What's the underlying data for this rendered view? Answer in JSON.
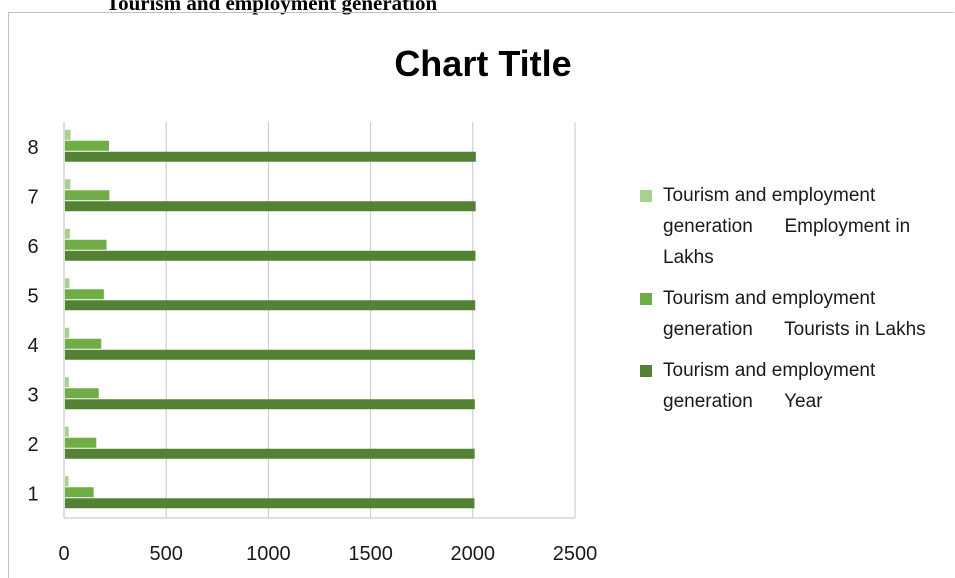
{
  "document": {
    "heading": "Tourism and employment generation"
  },
  "chart_data": {
    "type": "bar",
    "orientation": "horizontal",
    "title": "Chart Title",
    "categories": [
      "1",
      "2",
      "3",
      "4",
      "5",
      "6",
      "7",
      "8"
    ],
    "series": [
      {
        "name": "Tourism and employment generation      Employment in Lakhs",
        "color": "#a9d18e",
        "values": [
          22,
          23,
          24,
          26,
          27,
          29,
          31,
          32
        ]
      },
      {
        "name": "Tourism and employment generation      Tourists in Lakhs",
        "color": "#70ad47",
        "values": [
          145,
          158,
          170,
          182,
          195,
          208,
          222,
          220
        ]
      },
      {
        "name": "Tourism and employment generation      Year",
        "color": "#548235",
        "values": [
          2008,
          2009,
          2010,
          2011,
          2012,
          2013,
          2014,
          2015
        ]
      }
    ],
    "xlim": [
      0,
      2500
    ],
    "xticks": [
      "0",
      "500",
      "1000",
      "1500",
      "2000",
      "2500"
    ],
    "grid": true,
    "legend_position": "right"
  }
}
